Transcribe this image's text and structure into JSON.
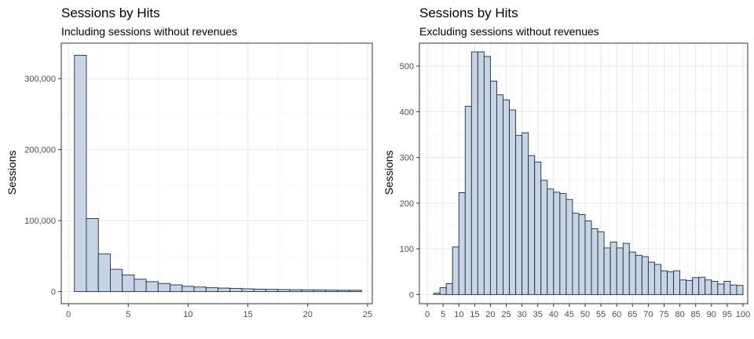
{
  "colors": {
    "bar_fill": "#c6d4e6",
    "bar_stroke": "#1f2d3d"
  },
  "chart_data": [
    {
      "type": "bar",
      "title": "Sessions by Hits",
      "subtitle": "Including sessions without revenues",
      "xlabel": "",
      "ylabel": "Sessions",
      "xlim": [
        -0.6,
        25.4
      ],
      "ylim": [
        -17000,
        350000
      ],
      "bin_width": 1,
      "grid": true,
      "x_ticks": [
        0,
        5,
        10,
        15,
        20,
        25
      ],
      "x_tick_labels": [
        "0",
        "5",
        "10",
        "15",
        "20",
        "25"
      ],
      "y_ticks": [
        0,
        100000,
        200000,
        300000
      ],
      "y_tick_labels": [
        "0",
        "100,000",
        "200,000",
        "300,000"
      ],
      "x": [
        1,
        2,
        3,
        4,
        5,
        6,
        7,
        8,
        9,
        10,
        11,
        12,
        13,
        14,
        15,
        16,
        17,
        18,
        19,
        20,
        21,
        22,
        23,
        24
      ],
      "values": [
        333000,
        103000,
        53000,
        31500,
        23500,
        17500,
        14000,
        11500,
        9500,
        7500,
        6500,
        5500,
        5000,
        4500,
        4000,
        3500,
        3200,
        2900,
        2700,
        2500,
        2300,
        2100,
        2000,
        1900
      ]
    },
    {
      "type": "bar",
      "title": "Sessions by Hits",
      "subtitle": "Excluding sessions without revenues",
      "xlabel": "",
      "ylabel": "Sessions",
      "xlim": [
        -2.5,
        101.5
      ],
      "ylim": [
        -20,
        550
      ],
      "bin_width": 2,
      "grid": true,
      "x_ticks": [
        0,
        5,
        10,
        15,
        20,
        25,
        30,
        35,
        40,
        45,
        50,
        55,
        60,
        65,
        70,
        75,
        80,
        85,
        90,
        95,
        100
      ],
      "x_tick_labels": [
        "0",
        "5",
        "10",
        "15",
        "20",
        "25",
        "30",
        "35",
        "40",
        "45",
        "50",
        "55",
        "60",
        "65",
        "70",
        "75",
        "80",
        "85",
        "90",
        "95",
        "100"
      ],
      "y_ticks": [
        0,
        100,
        200,
        300,
        400,
        500
      ],
      "y_tick_labels": [
        "0",
        "100",
        "200",
        "300",
        "400",
        "500"
      ],
      "x": [
        3,
        5,
        7,
        9,
        11,
        13,
        15,
        17,
        19,
        21,
        23,
        25,
        27,
        29,
        31,
        33,
        35,
        37,
        39,
        41,
        43,
        45,
        47,
        49,
        51,
        53,
        55,
        57,
        59,
        61,
        63,
        65,
        67,
        69,
        71,
        73,
        75,
        77,
        79,
        81,
        83,
        85,
        87,
        89,
        91,
        93,
        95,
        97,
        99
      ],
      "values": [
        3,
        15,
        24,
        104,
        223,
        412,
        531,
        531,
        521,
        467,
        437,
        426,
        404,
        348,
        354,
        304,
        290,
        250,
        231,
        224,
        221,
        208,
        178,
        175,
        161,
        144,
        137,
        102,
        115,
        102,
        112,
        93,
        86,
        83,
        71,
        66,
        52,
        50,
        52,
        32,
        31,
        37,
        38,
        32,
        29,
        23,
        29,
        21,
        20
      ]
    }
  ]
}
